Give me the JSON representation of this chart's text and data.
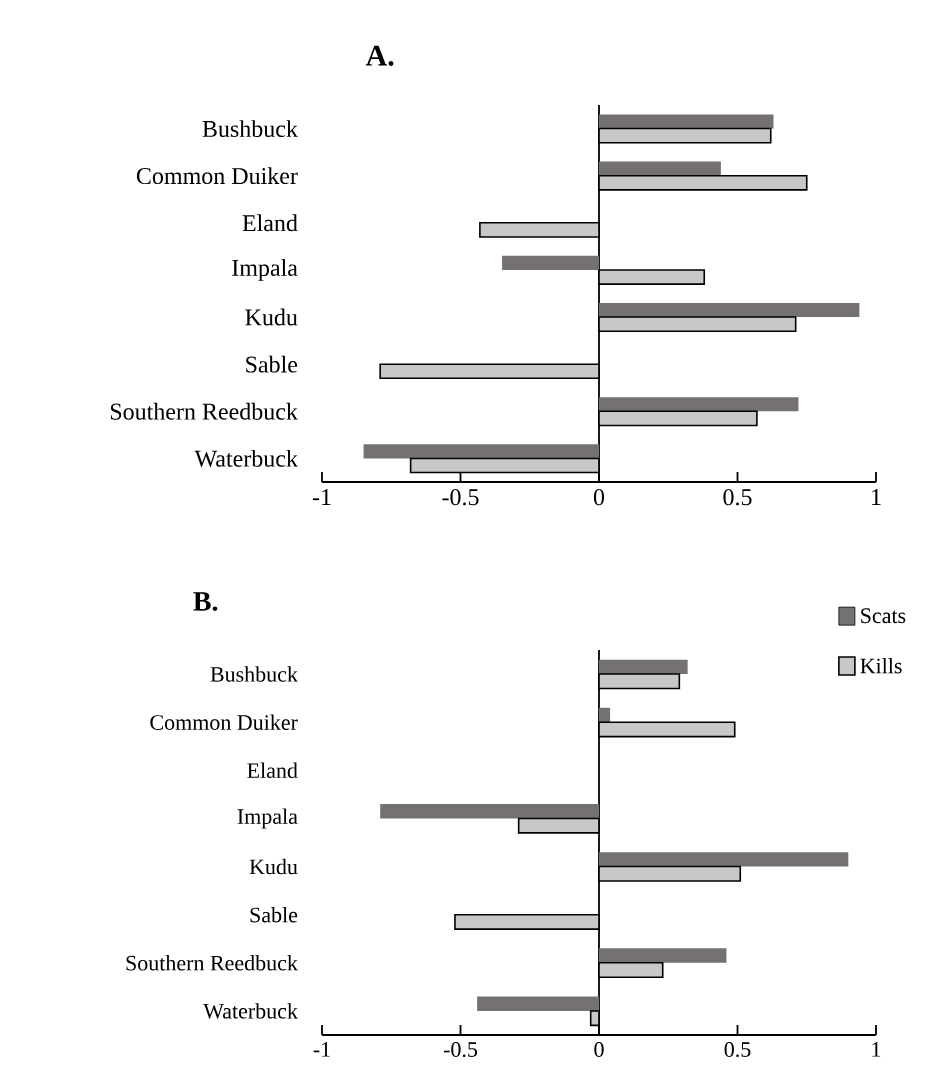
{
  "chart_data": [
    {
      "type": "bar",
      "title": "A.",
      "orientation": "horizontal",
      "categories": [
        "Bushbuck",
        "Common Duiker",
        "Eland",
        "Impala",
        "Kudu",
        "Sable",
        "Southern Reedbuck",
        "Waterbuck"
      ],
      "series": [
        {
          "color": "#767171",
          "values": [
            0.63,
            0.44,
            null,
            -0.35,
            0.94,
            null,
            0.72,
            -0.85
          ]
        },
        {
          "color": "#c8c8c8",
          "values": [
            0.62,
            0.75,
            -0.43,
            0.38,
            0.71,
            -0.79,
            0.57,
            -0.68
          ]
        }
      ],
      "xlim": [
        -1,
        1
      ],
      "xticks": [
        -1,
        -0.5,
        0,
        0.5,
        1
      ],
      "legend": false
    },
    {
      "type": "bar",
      "title": "B.",
      "orientation": "horizontal",
      "categories": [
        "Bushbuck",
        "Common Duiker",
        "Eland",
        "Impala",
        "Kudu",
        "Sable",
        "Southern Reedbuck",
        "Waterbuck"
      ],
      "series": [
        {
          "name": "Scats",
          "color": "#767171",
          "values": [
            0.32,
            0.04,
            null,
            -0.79,
            0.9,
            null,
            0.46,
            -0.44
          ]
        },
        {
          "name": "Kills",
          "color": "#c8c8c8",
          "values": [
            0.29,
            0.49,
            null,
            -0.29,
            0.51,
            -0.52,
            0.23,
            -0.03
          ]
        }
      ],
      "xlim": [
        -1,
        1
      ],
      "xticks": [
        -1,
        -0.5,
        0,
        0.5,
        1
      ],
      "legend": "top right"
    }
  ]
}
